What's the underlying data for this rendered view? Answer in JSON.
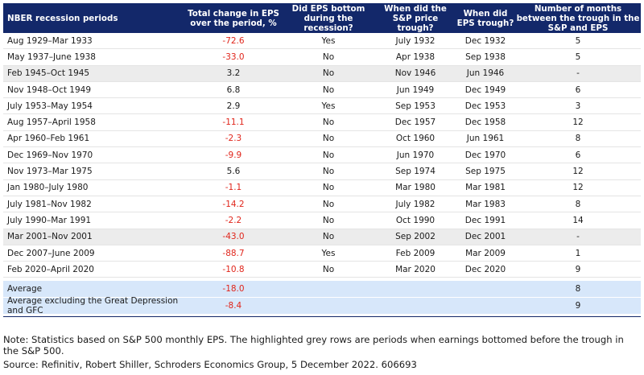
{
  "header": {
    "col1": "NBER recession periods",
    "col2": "Total change in EPS over the period, %",
    "col3": "Did EPS bottom during the recession?",
    "col4": "When did the S&P price trough?",
    "col5": "When did EPS trough?",
    "col6": "Number of months between the trough in the S&P and EPS"
  },
  "rows": [
    {
      "period": "Aug 1929–Mar 1933",
      "eps": "-72.6",
      "bottom": "Yes",
      "sp": "July 1932",
      "eps_trough": "Dec 1932",
      "months": "5",
      "neg": true,
      "grey": false
    },
    {
      "period": "May 1937–June 1938",
      "eps": "-33.0",
      "bottom": "No",
      "sp": "Apr 1938",
      "eps_trough": "Sep 1938",
      "months": "5",
      "neg": true,
      "grey": false
    },
    {
      "period": "Feb 1945–Oct 1945",
      "eps": "3.2",
      "bottom": "No",
      "sp": "Nov 1946",
      "eps_trough": "Jun 1946",
      "months": "-",
      "neg": false,
      "grey": true
    },
    {
      "period": "Nov 1948–Oct 1949",
      "eps": "6.8",
      "bottom": "No",
      "sp": "Jun 1949",
      "eps_trough": "Dec 1949",
      "months": "6",
      "neg": false,
      "grey": false
    },
    {
      "period": "July 1953–May 1954",
      "eps": "2.9",
      "bottom": "Yes",
      "sp": "Sep 1953",
      "eps_trough": "Dec 1953",
      "months": "3",
      "neg": false,
      "grey": false
    },
    {
      "period": "Aug 1957–April 1958",
      "eps": "-11.1",
      "bottom": "No",
      "sp": "Dec 1957",
      "eps_trough": "Dec 1958",
      "months": "12",
      "neg": true,
      "grey": false
    },
    {
      "period": "Apr 1960–Feb 1961",
      "eps": "-2.3",
      "bottom": "No",
      "sp": "Oct 1960",
      "eps_trough": "Jun 1961",
      "months": "8",
      "neg": true,
      "grey": false
    },
    {
      "period": "Dec 1969–Nov 1970",
      "eps": "-9.9",
      "bottom": "No",
      "sp": "Jun 1970",
      "eps_trough": "Dec 1970",
      "months": "6",
      "neg": true,
      "grey": false
    },
    {
      "period": "Nov 1973–Mar 1975",
      "eps": "5.6",
      "bottom": "No",
      "sp": "Sep 1974",
      "eps_trough": "Sep 1975",
      "months": "12",
      "neg": false,
      "grey": false
    },
    {
      "period": "Jan 1980–July 1980",
      "eps": "-1.1",
      "bottom": "No",
      "sp": "Mar 1980",
      "eps_trough": "Mar 1981",
      "months": "12",
      "neg": true,
      "grey": false
    },
    {
      "period": "July 1981–Nov 1982",
      "eps": "-14.2",
      "bottom": "No",
      "sp": "July 1982",
      "eps_trough": "Mar 1983",
      "months": "8",
      "neg": true,
      "grey": false
    },
    {
      "period": "July 1990–Mar 1991",
      "eps": "-2.2",
      "bottom": "No",
      "sp": "Oct 1990",
      "eps_trough": "Dec 1991",
      "months": "14",
      "neg": true,
      "grey": false
    },
    {
      "period": "Mar 2001–Nov 2001",
      "eps": "-43.0",
      "bottom": "No",
      "sp": "Sep 2002",
      "eps_trough": "Dec 2001",
      "months": "-",
      "neg": true,
      "grey": true
    },
    {
      "period": "Dec 2007–June 2009",
      "eps": "-88.7",
      "bottom": "Yes",
      "sp": "Feb 2009",
      "eps_trough": "Mar 2009",
      "months": "1",
      "neg": true,
      "grey": false
    },
    {
      "period": "Feb 2020–April 2020",
      "eps": "-10.8",
      "bottom": "No",
      "sp": "Mar 2020",
      "eps_trough": "Dec 2020",
      "months": "9",
      "neg": true,
      "grey": false
    }
  ],
  "averages": [
    {
      "label": "Average",
      "eps": "-18.0",
      "months": "8"
    },
    {
      "label": "Average excluding the Great Depression and GFC",
      "eps": "-8.4",
      "months": "9"
    }
  ],
  "note": "Note: Statistics based on S&P 500 monthly EPS. The highlighted grey rows are periods when earnings bottomed before the trough in the S&P 500.",
  "source": "Source: Refinitiv, Robert Shiller, Schroders Economics Group, 5 December 2022. 606693",
  "colors": {
    "header_bg": "#13286a",
    "negative": "#e0251b",
    "grey_row": "#ececec",
    "average_row": "#d7e7fa"
  }
}
